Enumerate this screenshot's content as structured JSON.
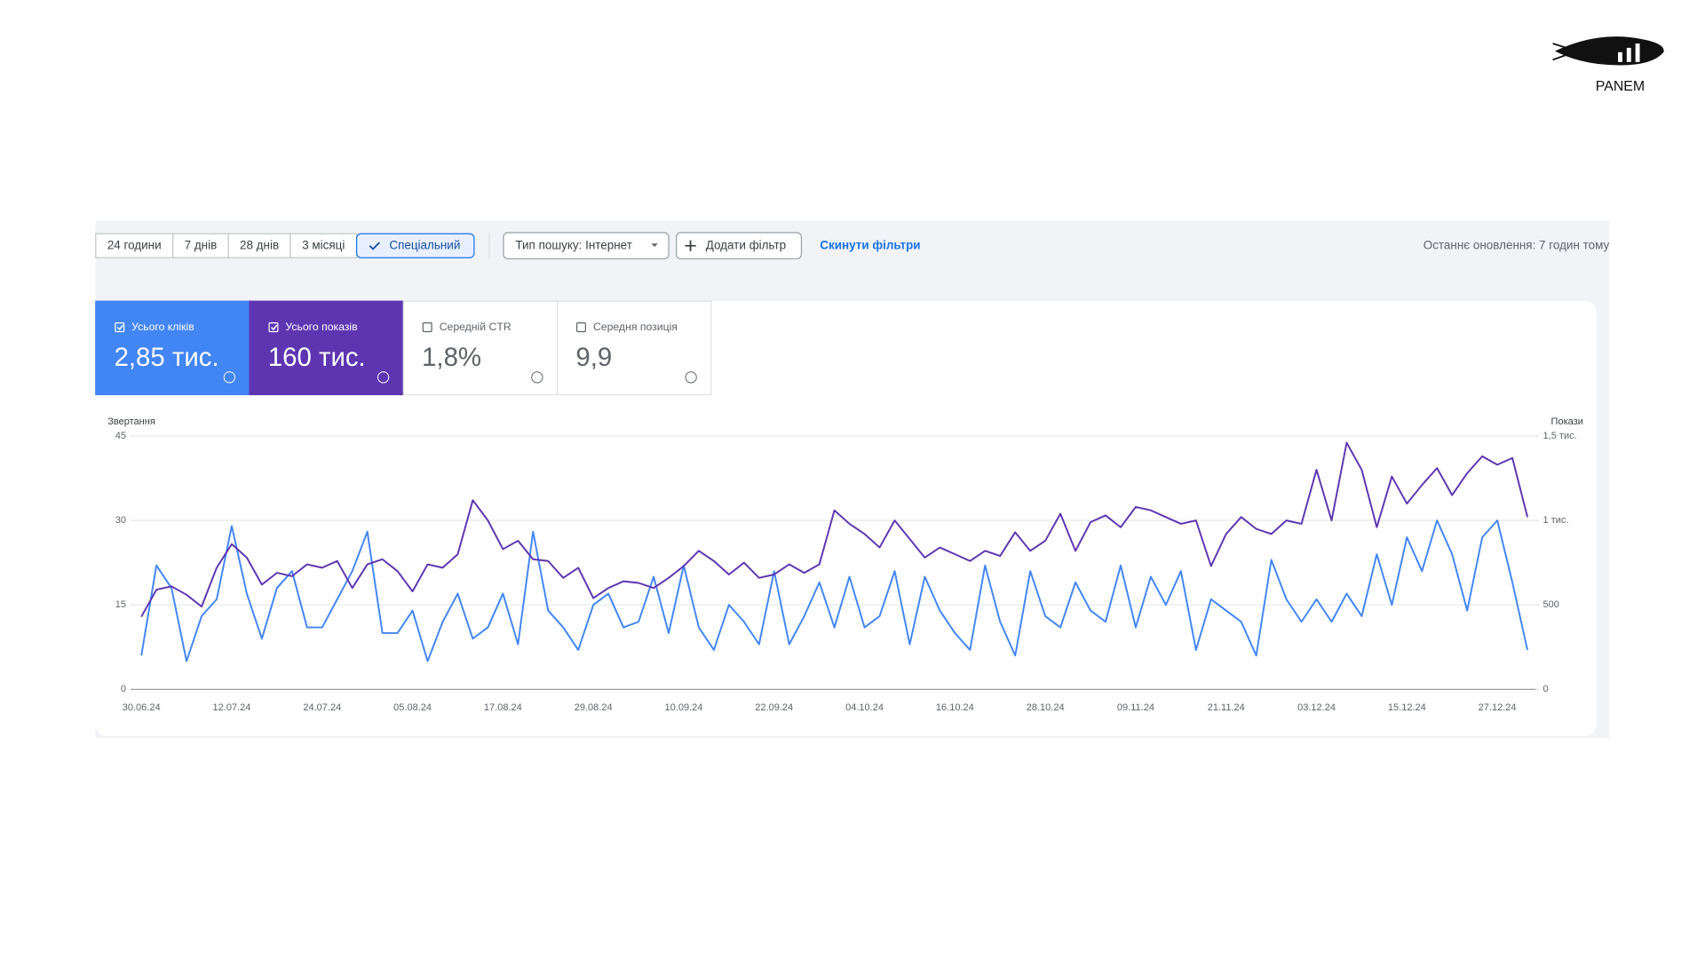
{
  "logo": "PANEM",
  "toolbar": {
    "date_ranges": [
      "24 години",
      "7 днів",
      "28 днів",
      "3 місяці",
      "Спеціальний"
    ],
    "selected_range": 4,
    "search_type": "Тип пошуку: Інтернет",
    "add_filter": "Додати фільтр",
    "reset": "Скинути фільтри",
    "last_update": "Останнє оновлення: 7 годин тому"
  },
  "metrics": [
    {
      "label": "Усього кліків",
      "value": "2,85 тис.",
      "checked": true
    },
    {
      "label": "Усього показів",
      "value": "160 тис.",
      "checked": true
    },
    {
      "label": "Середній CTR",
      "value": "1,8%",
      "checked": false
    },
    {
      "label": "Середня позиція",
      "value": "9,9",
      "checked": false
    }
  ],
  "chart_data": {
    "type": "line",
    "y_label": "Звертання",
    "y2_label": "Покази",
    "categories": [
      "30.06.24",
      null,
      null,
      null,
      null,
      null,
      "12.07.24",
      null,
      null,
      null,
      null,
      null,
      "24.07.24",
      null,
      null,
      null,
      null,
      null,
      "05.08.24",
      null,
      null,
      null,
      null,
      null,
      "17.08.24",
      null,
      null,
      null,
      null,
      null,
      "29.08.24",
      null,
      null,
      null,
      null,
      null,
      "10.09.24",
      null,
      null,
      null,
      null,
      null,
      "22.09.24",
      null,
      null,
      null,
      null,
      null,
      "04.10.24",
      null,
      null,
      null,
      null,
      null,
      "16.10.24",
      null,
      null,
      null,
      null,
      null,
      "28.10.24",
      null,
      null,
      null,
      null,
      null,
      "09.11.24",
      null,
      null,
      null,
      null,
      null,
      "21.11.24",
      null,
      null,
      null,
      null,
      null,
      "03.12.24",
      null,
      null,
      null,
      null,
      null,
      "15.12.24",
      null,
      null,
      null,
      null,
      null,
      "27.12.24",
      null,
      null
    ],
    "series": [
      {
        "name": "Усього кліків",
        "color": "#4285f4",
        "axis": "y",
        "values": [
          6,
          22,
          18,
          5,
          13,
          16,
          29,
          17,
          9,
          18,
          21,
          11,
          11,
          16,
          21,
          28,
          10,
          10,
          14,
          5,
          12,
          17,
          9,
          11,
          17,
          8,
          28,
          14,
          11,
          7,
          15,
          17,
          11,
          12,
          20,
          10,
          22,
          11,
          7,
          15,
          12,
          8,
          21,
          8,
          13,
          19,
          11,
          20,
          11,
          13,
          21,
          8,
          20,
          14,
          10,
          7,
          22,
          12,
          6,
          21,
          13,
          11,
          19,
          14,
          12,
          22,
          11,
          20,
          15,
          21,
          7,
          16,
          14,
          12,
          6,
          23,
          16,
          12,
          16,
          12,
          17,
          13,
          24,
          15,
          27,
          21,
          30,
          24,
          14,
          27,
          30,
          19,
          7
        ]
      },
      {
        "name": "Усього показів",
        "color": "#5e35b1",
        "axis": "y2",
        "values": [
          430,
          590,
          610,
          560,
          490,
          720,
          860,
          780,
          620,
          690,
          670,
          740,
          720,
          760,
          600,
          740,
          770,
          700,
          580,
          740,
          720,
          800,
          1120,
          1000,
          830,
          880,
          770,
          760,
          660,
          720,
          540,
          600,
          640,
          630,
          600,
          660,
          730,
          820,
          760,
          680,
          750,
          660,
          680,
          740,
          690,
          740,
          1060,
          980,
          920,
          840,
          1000,
          890,
          780,
          840,
          800,
          760,
          820,
          790,
          930,
          820,
          880,
          1040,
          820,
          990,
          1030,
          960,
          1080,
          1060,
          1020,
          980,
          1000,
          730,
          920,
          1020,
          950,
          920,
          1000,
          980,
          1300,
          1000,
          1460,
          1300,
          960,
          1260,
          1100,
          1210,
          1310,
          1150,
          1280,
          1380,
          1330,
          1370,
          1020
        ]
      }
    ],
    "ylim": [
      0,
      45
    ],
    "yticks": [
      0,
      15,
      30,
      45
    ],
    "y2lim": [
      0,
      1500
    ],
    "y2ticks": [
      0,
      500,
      {
        "value": 1000,
        "label": "1 тис."
      },
      {
        "value": 1500,
        "label": "1,5 тис."
      }
    ],
    "grid": true
  }
}
